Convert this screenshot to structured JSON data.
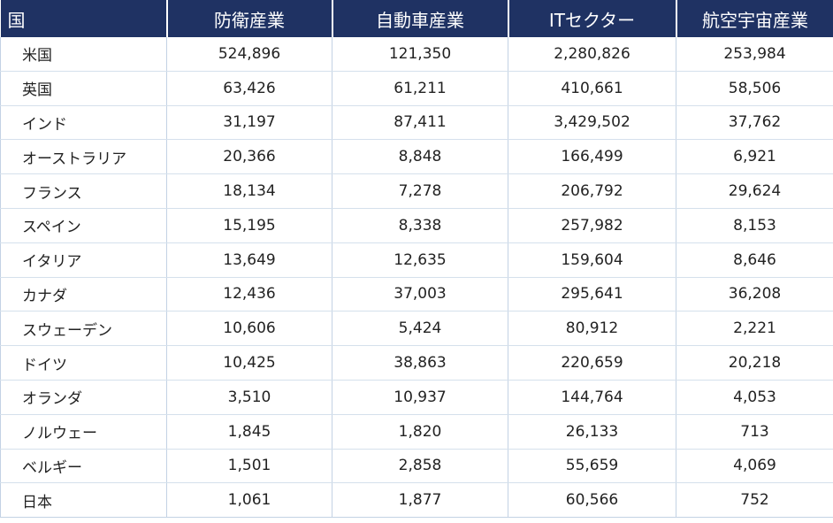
{
  "table": {
    "headers": [
      "国",
      "防衛産業",
      "自動車産業",
      "ITセクター",
      "航空宇宙産業"
    ],
    "rows": [
      [
        "米国",
        "524,896",
        "121,350",
        "2,280,826",
        "253,984"
      ],
      [
        "英国",
        "63,426",
        "61,211",
        "410,661",
        "58,506"
      ],
      [
        "インド",
        "31,197",
        "87,411",
        "3,429,502",
        "37,762"
      ],
      [
        "オーストラリア",
        "20,366",
        "8,848",
        "166,499",
        "6,921"
      ],
      [
        "フランス",
        "18,134",
        "7,278",
        "206,792",
        "29,624"
      ],
      [
        "スペイン",
        "15,195",
        "8,338",
        "257,982",
        "8,153"
      ],
      [
        "イタリア",
        "13,649",
        "12,635",
        "159,604",
        "8,646"
      ],
      [
        "カナダ",
        "12,436",
        "37,003",
        "295,641",
        "36,208"
      ],
      [
        "スウェーデン",
        "10,606",
        "5,424",
        "80,912",
        "2,221"
      ],
      [
        "ドイツ",
        "10,425",
        "38,863",
        "220,659",
        "20,218"
      ],
      [
        "オランダ",
        "3,510",
        "10,937",
        "144,764",
        "4,053"
      ],
      [
        "ノルウェー",
        "1,845",
        "1,820",
        "26,133",
        "713"
      ],
      [
        "ベルギー",
        "1,501",
        "2,858",
        "55,659",
        "4,069"
      ],
      [
        "日本",
        "1,061",
        "1,877",
        "60,566",
        "752"
      ]
    ]
  },
  "colors": {
    "header_bg": "#1f3263",
    "header_text": "#ffffff",
    "grid": "#c3d2e4"
  }
}
